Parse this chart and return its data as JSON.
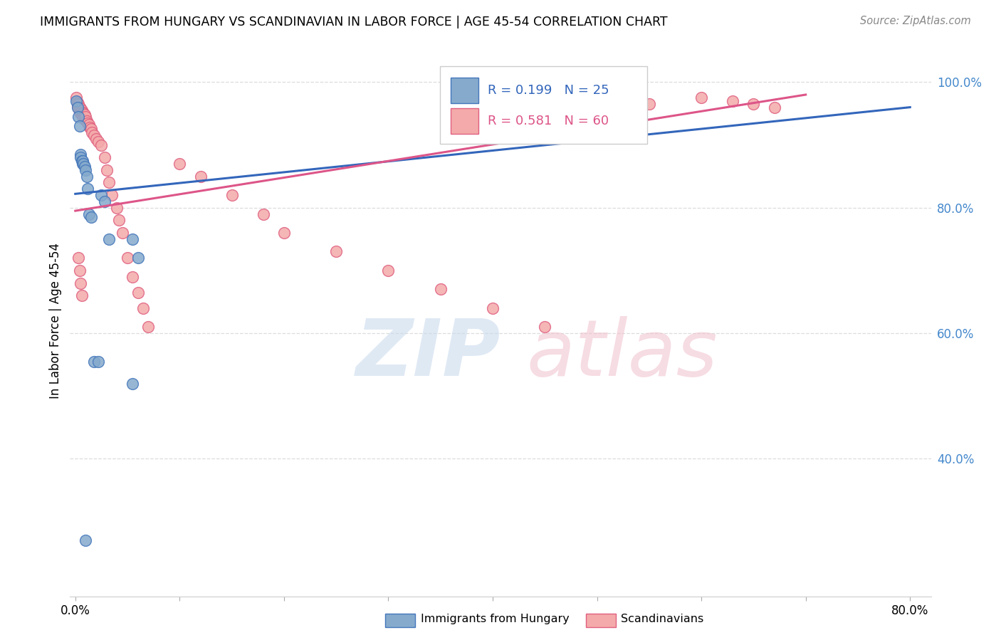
{
  "title": "IMMIGRANTS FROM HUNGARY VS SCANDINAVIAN IN LABOR FORCE | AGE 45-54 CORRELATION CHART",
  "source_text": "Source: ZipAtlas.com",
  "ylabel": "In Labor Force | Age 45-54",
  "blue_R": 0.199,
  "blue_N": 25,
  "pink_R": 0.581,
  "pink_N": 60,
  "blue_color": "#85AACC",
  "pink_color": "#F4AAAA",
  "blue_edge_color": "#4477BB",
  "pink_edge_color": "#E06080",
  "blue_line_color": "#3366BB",
  "pink_line_color": "#DD5588",
  "blue_x": [
    0.001,
    0.002,
    0.003,
    0.004,
    0.005,
    0.005,
    0.006,
    0.007,
    0.007,
    0.008,
    0.009,
    0.01,
    0.011,
    0.012,
    0.013,
    0.015,
    0.018,
    0.022,
    0.025,
    0.028,
    0.032,
    0.055,
    0.055,
    0.06,
    0.01
  ],
  "blue_y": [
    0.97,
    0.96,
    0.945,
    0.93,
    0.885,
    0.88,
    0.875,
    0.87,
    0.875,
    0.87,
    0.865,
    0.86,
    0.85,
    0.83,
    0.79,
    0.785,
    0.555,
    0.555,
    0.82,
    0.81,
    0.75,
    0.75,
    0.52,
    0.72,
    0.27
  ],
  "pink_x": [
    0.001,
    0.002,
    0.002,
    0.003,
    0.003,
    0.004,
    0.004,
    0.005,
    0.005,
    0.006,
    0.006,
    0.007,
    0.007,
    0.008,
    0.008,
    0.009,
    0.009,
    0.01,
    0.011,
    0.012,
    0.013,
    0.014,
    0.015,
    0.016,
    0.018,
    0.02,
    0.022,
    0.025,
    0.028,
    0.03,
    0.032,
    0.035,
    0.04,
    0.042,
    0.045,
    0.05,
    0.055,
    0.06,
    0.065,
    0.07,
    0.1,
    0.12,
    0.15,
    0.18,
    0.2,
    0.25,
    0.3,
    0.35,
    0.4,
    0.45,
    0.5,
    0.55,
    0.6,
    0.63,
    0.65,
    0.67,
    0.003,
    0.004,
    0.005,
    0.006
  ],
  "pink_y": [
    0.975,
    0.968,
    0.962,
    0.965,
    0.958,
    0.96,
    0.952,
    0.958,
    0.95,
    0.955,
    0.948,
    0.952,
    0.945,
    0.95,
    0.942,
    0.948,
    0.94,
    0.945,
    0.938,
    0.935,
    0.932,
    0.928,
    0.925,
    0.92,
    0.915,
    0.91,
    0.905,
    0.9,
    0.88,
    0.86,
    0.84,
    0.82,
    0.8,
    0.78,
    0.76,
    0.72,
    0.69,
    0.665,
    0.64,
    0.61,
    0.87,
    0.85,
    0.82,
    0.79,
    0.76,
    0.73,
    0.7,
    0.67,
    0.64,
    0.61,
    0.97,
    0.965,
    0.975,
    0.97,
    0.965,
    0.96,
    0.72,
    0.7,
    0.68,
    0.66
  ],
  "blue_trend_x": [
    0.0,
    0.8
  ],
  "blue_trend_y": [
    0.822,
    0.96
  ],
  "pink_trend_x": [
    0.0,
    0.7
  ],
  "pink_trend_y": [
    0.795,
    0.98
  ],
  "xlim": [
    -0.005,
    0.82
  ],
  "ylim": [
    0.18,
    1.06
  ],
  "xtick_positions": [
    0.0,
    0.1,
    0.2,
    0.3,
    0.4,
    0.5,
    0.6,
    0.7,
    0.8
  ],
  "ytick_right_positions": [
    0.4,
    0.6,
    0.8,
    1.0
  ],
  "ytick_right_labels": [
    "40.0%",
    "60.0%",
    "80.0%",
    "100.0%"
  ],
  "right_tick_color": "#4488CC",
  "grid_color": "#DDDDDD",
  "watermark_zip_color": "#C5D8EC",
  "watermark_atlas_color": "#F0C0CC"
}
